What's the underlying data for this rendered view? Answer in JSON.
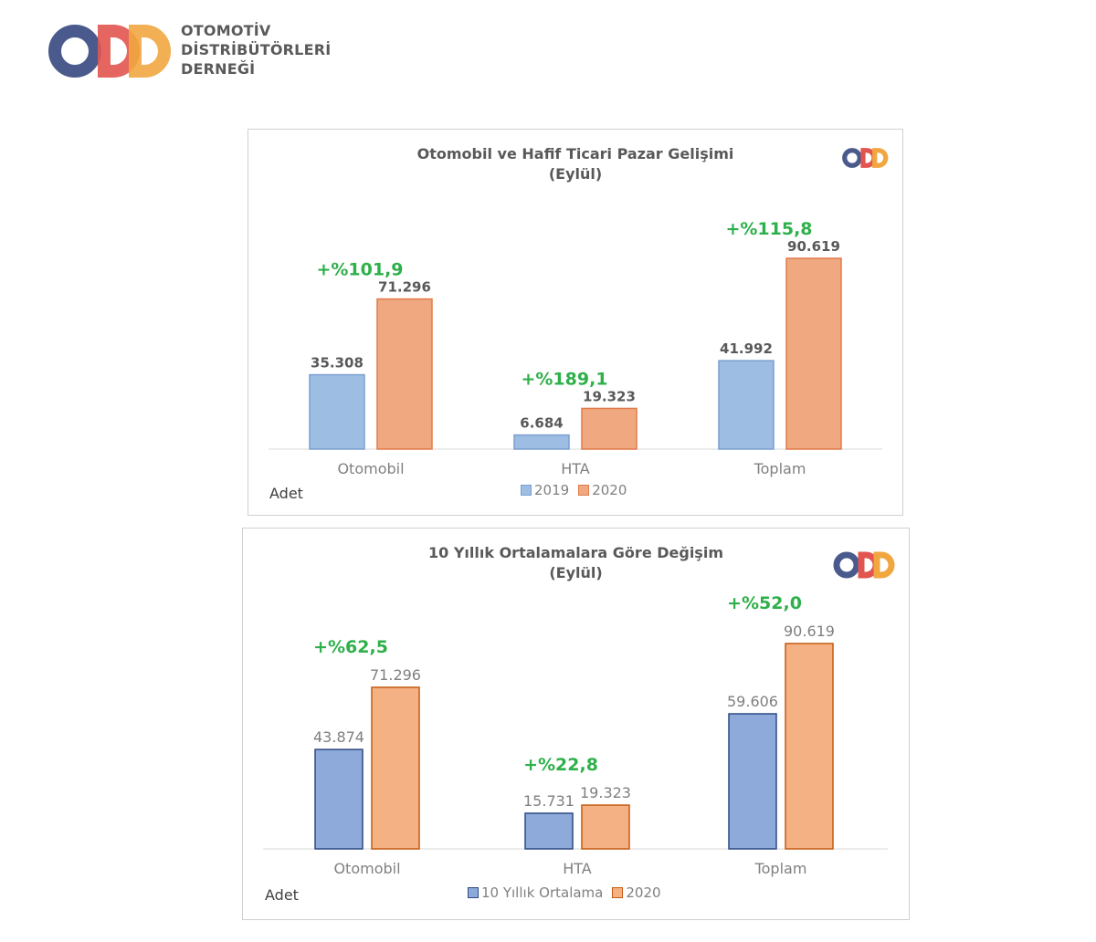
{
  "organization": {
    "name_lines": [
      "OTOMOTİV",
      "DİSTRİBÜTÖRLERİ",
      "DERNEĞİ"
    ],
    "logo_icon": "odd-logo-icon",
    "logo_colors": [
      "#4a5a8c",
      "#e2544f",
      "#f1a640"
    ]
  },
  "colors": {
    "series_2019": "#9ebde3",
    "series_2020": "#f0a880",
    "series_avg": "#8eaadb",
    "series_2020_b": "#f4b183",
    "growth_label": "#2eb04a"
  },
  "chart_data": [
    {
      "type": "bar",
      "title_lines": [
        "Otomobil  ve  Hafif  Ticari  Pazar  Gelişimi",
        "(Eylül)"
      ],
      "unit_label": "Adet",
      "categories": [
        "Otomobil",
        "HTA",
        "Toplam"
      ],
      "series": [
        {
          "name": "2019",
          "values": [
            35308,
            6684,
            41992
          ],
          "labels": [
            "35.308",
            "6.684",
            "41.992"
          ]
        },
        {
          "name": "2020",
          "values": [
            71296,
            19323,
            90619
          ],
          "labels": [
            "71.296",
            "19.323",
            "90.619"
          ]
        }
      ],
      "growth_labels": [
        "+%101,9",
        "+%189,1",
        "+%115,8"
      ],
      "ylim": [
        0,
        100000
      ],
      "grid": false,
      "legend_position": "bottom"
    },
    {
      "type": "bar",
      "title_lines": [
        "10  Yıllık  Ortalamalara  Göre  Değişim",
        "(Eylül)"
      ],
      "unit_label": "Adet",
      "categories": [
        "Otomobil",
        "HTA",
        "Toplam"
      ],
      "series": [
        {
          "name": "10 Yıllık Ortalama",
          "values": [
            43874,
            15731,
            59606
          ],
          "labels": [
            "43.874",
            "15.731",
            "59.606"
          ]
        },
        {
          "name": "2020",
          "values": [
            71296,
            19323,
            90619
          ],
          "labels": [
            "71.296",
            "19.323",
            "90.619"
          ]
        }
      ],
      "growth_labels": [
        "+%62,5",
        "+%22,8",
        "+%52,0"
      ],
      "ylim": [
        0,
        100000
      ],
      "grid": false,
      "legend_position": "bottom"
    }
  ]
}
